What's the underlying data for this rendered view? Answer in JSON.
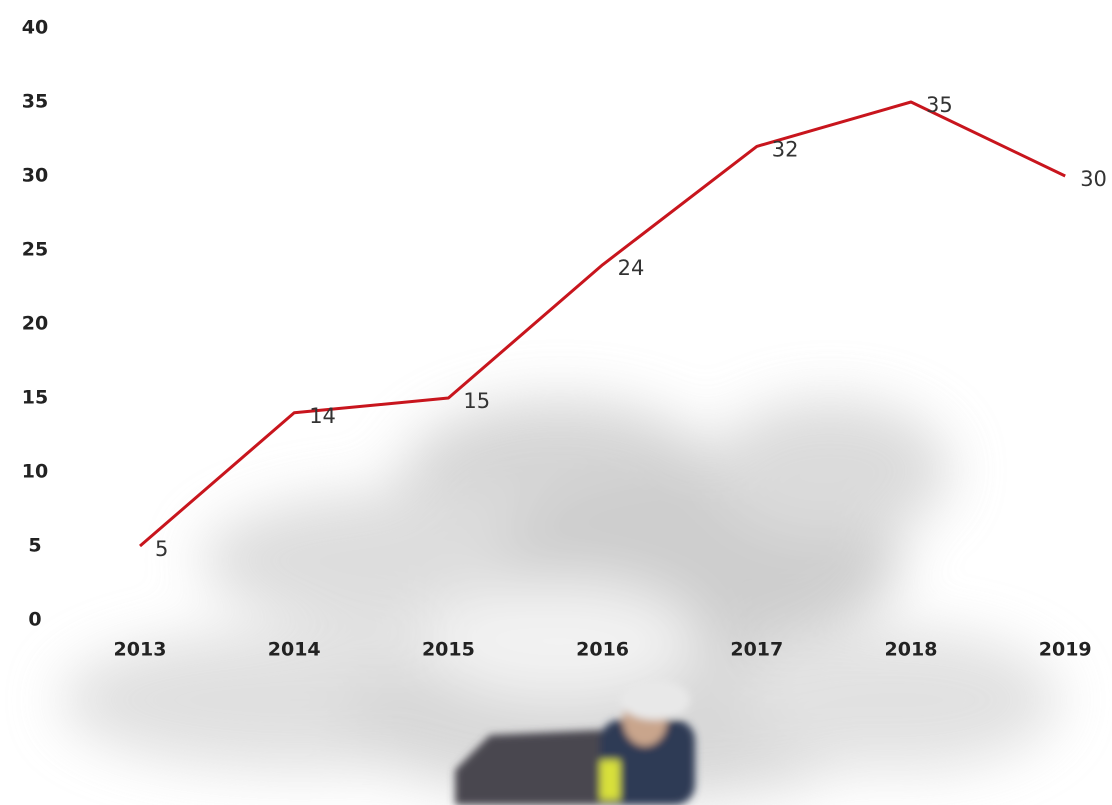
{
  "chart_data": {
    "type": "line",
    "categories": [
      "2013",
      "2014",
      "2015",
      "2016",
      "2017",
      "2018",
      "2019"
    ],
    "series": [
      {
        "name": null,
        "color": "#c8151d",
        "values": [
          5,
          14,
          15,
          24,
          32,
          35,
          30
        ]
      }
    ],
    "ylim": [
      0,
      40
    ],
    "yticks": [
      0,
      5,
      10,
      15,
      20,
      25,
      30,
      35,
      40
    ],
    "grid": false
  }
}
